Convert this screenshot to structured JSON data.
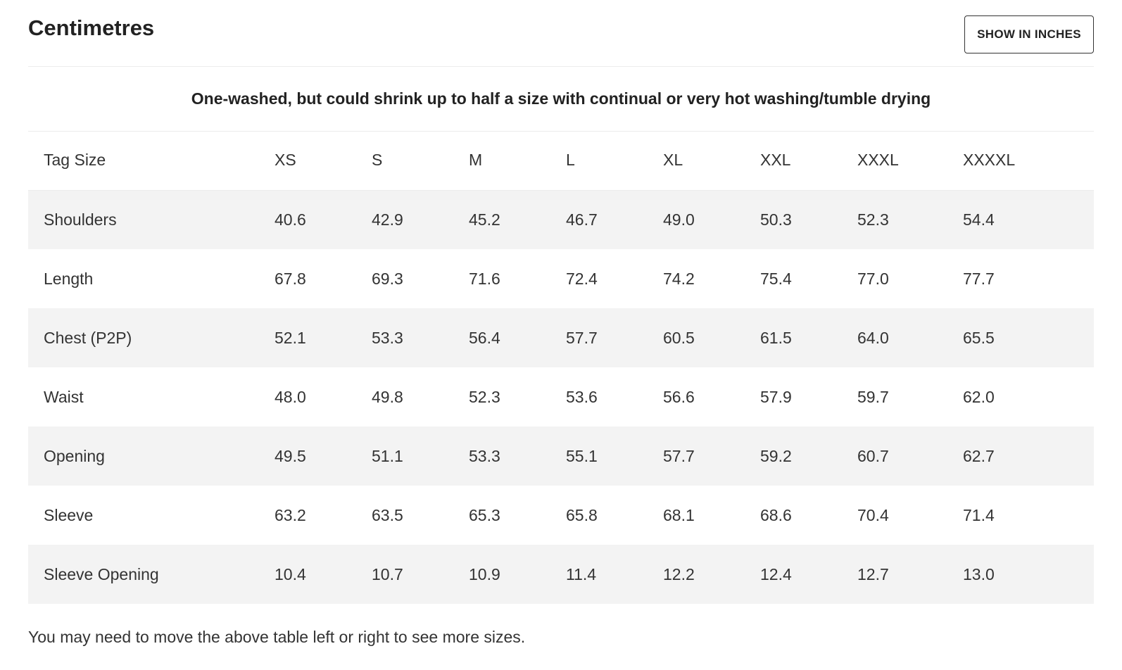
{
  "header": {
    "title": "Centimetres",
    "toggle_label": "SHOW IN INCHES"
  },
  "note": "One-washed, but could shrink up to half a size with continual or very hot washing/tumble drying",
  "table": {
    "columns": [
      "Tag Size",
      "XS",
      "S",
      "M",
      "L",
      "XL",
      "XXL",
      "XXXL",
      "XXXXL"
    ],
    "rows": [
      [
        "Shoulders",
        "40.6",
        "42.9",
        "45.2",
        "46.7",
        "49.0",
        "50.3",
        "52.3",
        "54.4"
      ],
      [
        "Length",
        "67.8",
        "69.3",
        "71.6",
        "72.4",
        "74.2",
        "75.4",
        "77.0",
        "77.7"
      ],
      [
        "Chest (P2P)",
        "52.1",
        "53.3",
        "56.4",
        "57.7",
        "60.5",
        "61.5",
        "64.0",
        "65.5"
      ],
      [
        "Waist",
        "48.0",
        "49.8",
        "52.3",
        "53.6",
        "56.6",
        "57.9",
        "59.7",
        "62.0"
      ],
      [
        "Opening",
        "49.5",
        "51.1",
        "53.3",
        "55.1",
        "57.7",
        "59.2",
        "60.7",
        "62.7"
      ],
      [
        "Sleeve",
        "63.2",
        "63.5",
        "65.3",
        "65.8",
        "68.1",
        "68.6",
        "70.4",
        "71.4"
      ],
      [
        "Sleeve Opening",
        "10.4",
        "10.7",
        "10.9",
        "11.4",
        "12.2",
        "12.4",
        "12.7",
        "13.0"
      ]
    ]
  },
  "footer_note": "You may need to move the above table left or right to see more sizes.",
  "colors": {
    "stripe_row": "#f3f3f3",
    "divider": "#ececec",
    "text": "#333333",
    "button_border": "#333333"
  }
}
